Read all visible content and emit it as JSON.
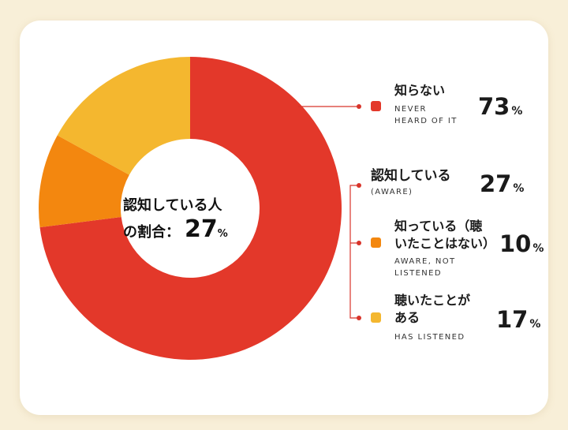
{
  "chart_data": {
    "type": "pie",
    "style": "donut",
    "center_label": "認知している人の割合：",
    "center_label_lines": [
      "認知している人",
      "の割合："
    ],
    "center_value": 27,
    "center_unit": "%",
    "slices": [
      {
        "label": "知らない",
        "sublabel": "NEVER HEARD OF IT",
        "value": 73,
        "color": "#e3382a"
      },
      {
        "label": "知っている（聴いたことはない）",
        "sublabel": "AWARE, NOT LISTENED",
        "value": 10,
        "color": "#f3870f"
      },
      {
        "label": "聴いたことがある",
        "sublabel": "HAS LISTENED",
        "value": 17,
        "color": "#f4b72f"
      }
    ],
    "group": {
      "label": "認知している",
      "sublabel": "(AWARE)",
      "value": 27
    },
    "unit": "%"
  },
  "legend": {
    "never": {
      "jp": "知らない",
      "en_lines": [
        "NEVER",
        "HEARD OF IT"
      ],
      "value": "73",
      "unit": "%"
    },
    "aware": {
      "jp": "認知している",
      "en": "(AWARE)",
      "value": "27",
      "unit": "%"
    },
    "not_listened": {
      "jp_lines": [
        "知っている（聴",
        "いたことはない）"
      ],
      "en_lines": [
        "AWARE, NOT",
        "LISTENED"
      ],
      "value": "10",
      "unit": "%"
    },
    "listened": {
      "jp_lines": [
        "聴いたことが",
        "ある"
      ],
      "en": "HAS LISTENED",
      "value": "17",
      "unit": "%"
    }
  },
  "colors": {
    "never": "#e3382a",
    "not_listened": "#f3870f",
    "listened": "#f4b72f",
    "connector": "#d8342a",
    "background": "#f8efd8",
    "card": "#ffffff"
  }
}
